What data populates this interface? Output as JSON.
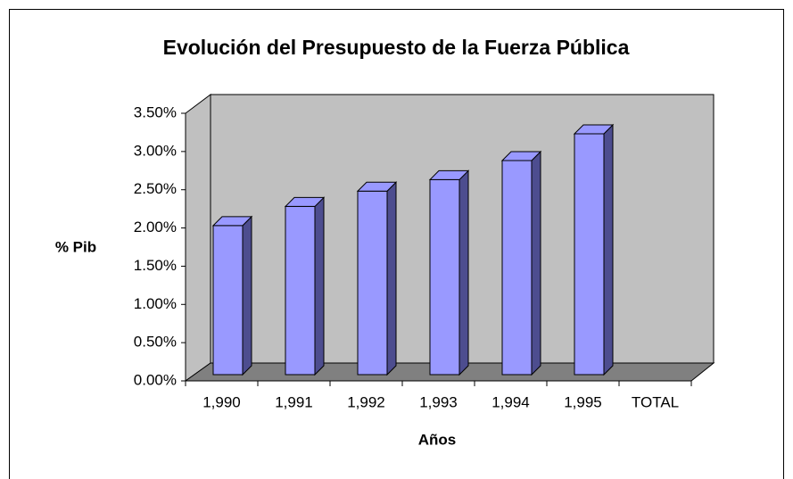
{
  "chart_data": {
    "type": "bar3d",
    "title": "Evolución del Presupuesto de la Fuerza Pública",
    "y_label": "% Pib",
    "x_label": "Años",
    "categories": [
      "1,990",
      "1,991",
      "1,992",
      "1,993",
      "1,994",
      "1,995",
      "TOTAL"
    ],
    "values": [
      1.95,
      2.2,
      2.4,
      2.55,
      2.8,
      3.15,
      null
    ],
    "color": "#9999ff",
    "ylim": [
      0,
      3.5
    ],
    "yticks": [
      {
        "value": 0,
        "label": "0.00%"
      },
      {
        "value": 0.5,
        "label": "0.50%"
      },
      {
        "value": 1,
        "label": "1.00%"
      },
      {
        "value": 1.5,
        "label": "1.50%"
      },
      {
        "value": 2,
        "label": "2.00%"
      },
      {
        "value": 2.5,
        "label": "2.50%"
      },
      {
        "value": 3,
        "label": "3.00%"
      },
      {
        "value": 3.5,
        "label": "3.50%"
      }
    ]
  }
}
